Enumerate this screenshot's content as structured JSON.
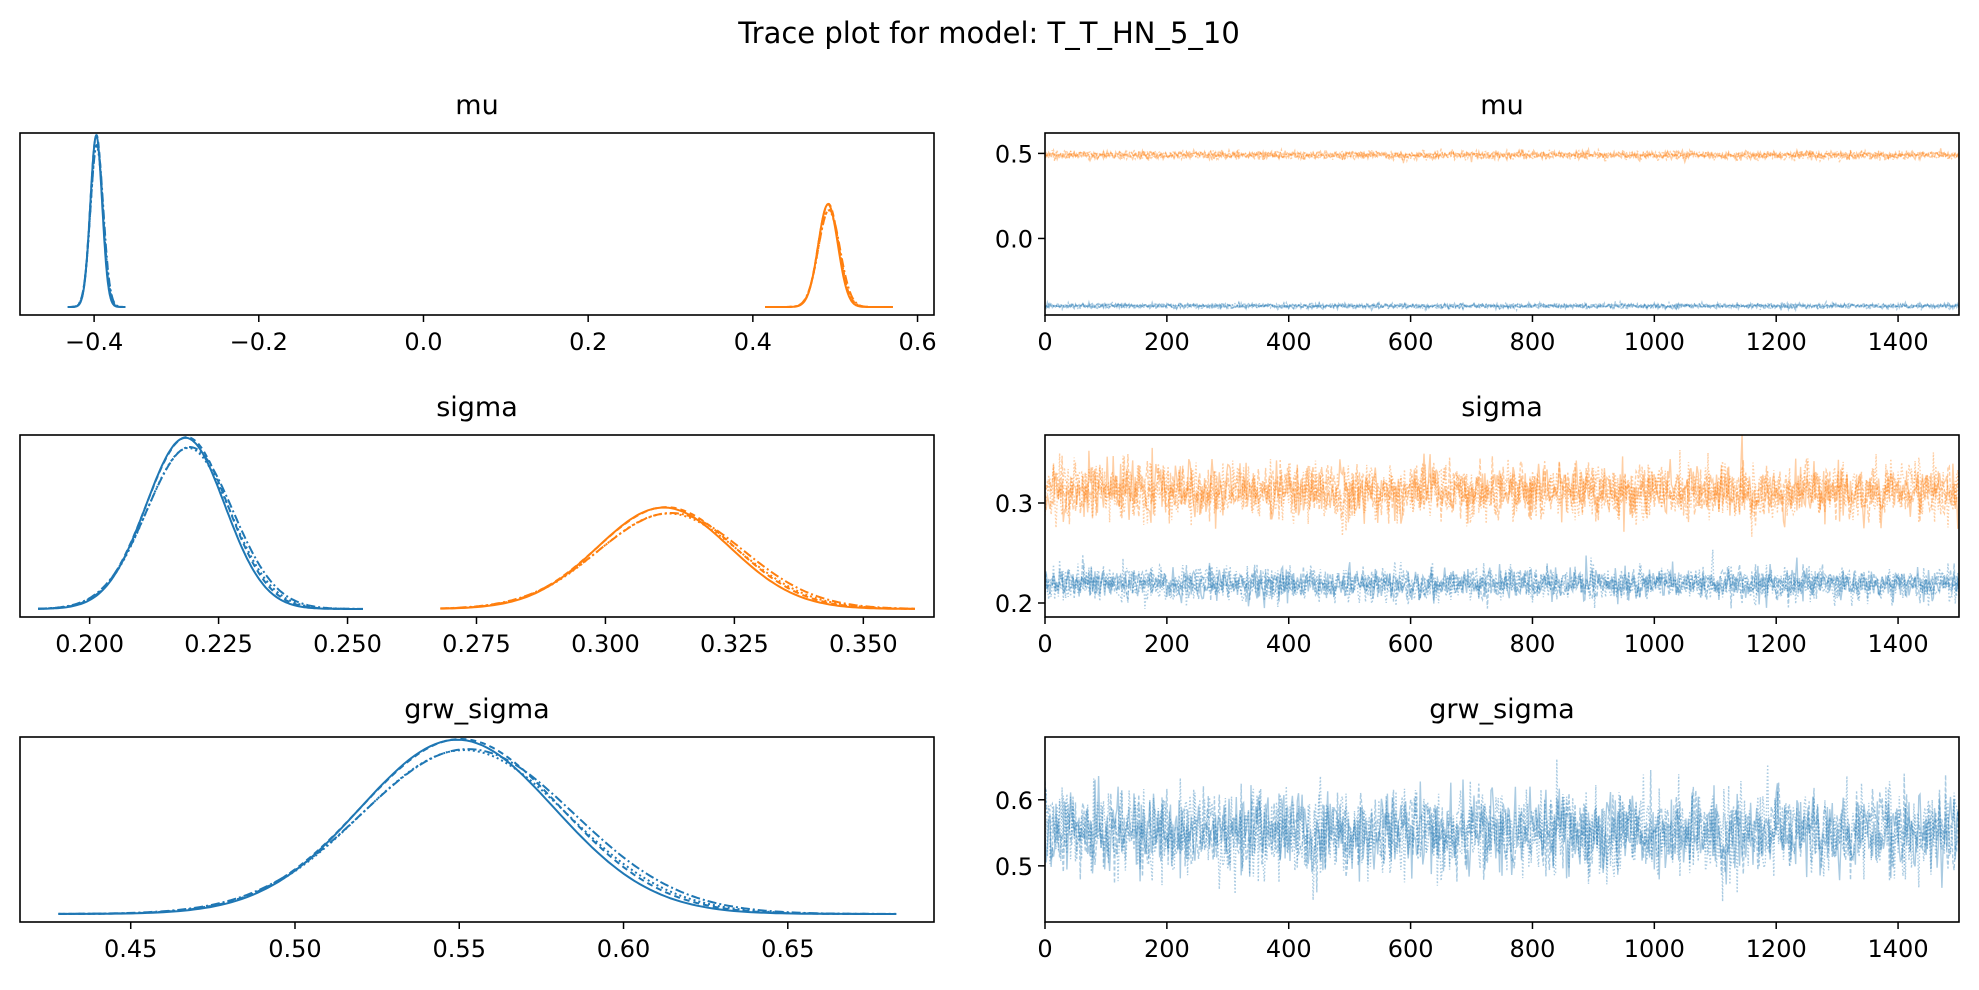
{
  "title": "Trace plot for model: T_T_HN_5_10",
  "colors": {
    "chain_a": "#1f77b4",
    "chain_b": "#ff7f0e"
  },
  "chart_data": [
    {
      "type": "line",
      "kind": "density",
      "title": "mu",
      "xlim": [
        -0.49,
        0.62
      ],
      "xticks": [
        "-0.4",
        "-0.2",
        "0.0",
        "0.2",
        "0.4",
        "0.6"
      ],
      "xtick_values": [
        -0.4,
        -0.2,
        0.0,
        0.2,
        0.4,
        0.6
      ],
      "yticks_visible": false,
      "series": [
        {
          "color": "#1f77b4",
          "mean": -0.397,
          "sd": 0.0075,
          "range": [
            -0.432,
            -0.362
          ]
        },
        {
          "color": "#ff7f0e",
          "mean": 0.492,
          "sd": 0.0125,
          "range": [
            0.415,
            0.57
          ]
        }
      ]
    },
    {
      "type": "line",
      "kind": "trace",
      "title": "mu",
      "xlim": [
        0,
        1500
      ],
      "ylim": [
        -0.45,
        0.62
      ],
      "xticks": [
        "0",
        "200",
        "400",
        "600",
        "800",
        "1000",
        "1200",
        "1400"
      ],
      "xtick_values": [
        0,
        200,
        400,
        600,
        800,
        1000,
        1200,
        1400
      ],
      "yticks": [
        "0.5",
        "0.0"
      ],
      "ytick_values": [
        0.5,
        0.0
      ],
      "draws": 1500,
      "series": [
        {
          "color": "#ff7f0e",
          "mean": 0.49,
          "sd": 0.012
        },
        {
          "color": "#1f77b4",
          "mean": -0.397,
          "sd": 0.0075
        }
      ]
    },
    {
      "type": "line",
      "kind": "density",
      "title": "sigma",
      "xlim": [
        0.1865,
        0.3637
      ],
      "xticks": [
        "0.200",
        "0.225",
        "0.250",
        "0.275",
        "0.300",
        "0.325",
        "0.350"
      ],
      "xtick_values": [
        0.2,
        0.225,
        0.25,
        0.275,
        0.3,
        0.325,
        0.35
      ],
      "yticks_visible": false,
      "series": [
        {
          "color": "#1f77b4",
          "mean": 0.219,
          "sd": 0.008,
          "range": [
            0.19,
            0.253
          ]
        },
        {
          "color": "#ff7f0e",
          "mean": 0.312,
          "sd": 0.0135,
          "range": [
            0.268,
            0.36
          ]
        }
      ]
    },
    {
      "type": "line",
      "kind": "trace",
      "title": "sigma",
      "xlim": [
        0,
        1500
      ],
      "ylim": [
        0.186,
        0.368
      ],
      "xticks": [
        "0",
        "200",
        "400",
        "600",
        "800",
        "1000",
        "1200",
        "1400"
      ],
      "xtick_values": [
        0,
        200,
        400,
        600,
        800,
        1000,
        1200,
        1400
      ],
      "yticks": [
        "0.3",
        "0.2"
      ],
      "ytick_values": [
        0.3,
        0.2
      ],
      "draws": 1500,
      "series": [
        {
          "color": "#ff7f0e",
          "mean": 0.312,
          "sd": 0.0135
        },
        {
          "color": "#1f77b4",
          "mean": 0.219,
          "sd": 0.008
        }
      ]
    },
    {
      "type": "line",
      "kind": "density",
      "title": "grw_sigma",
      "xlim": [
        0.4163,
        0.6945
      ],
      "xticks": [
        "0.45",
        "0.50",
        "0.55",
        "0.60",
        "0.65"
      ],
      "xtick_values": [
        0.45,
        0.5,
        0.55,
        0.6,
        0.65
      ],
      "yticks_visible": false,
      "series": [
        {
          "color": "#1f77b4",
          "mean": 0.551,
          "sd": 0.031,
          "range": [
            0.428,
            0.683
          ]
        }
      ]
    },
    {
      "type": "line",
      "kind": "trace",
      "title": "grw_sigma",
      "xlim": [
        0,
        1500
      ],
      "ylim": [
        0.415,
        0.695
      ],
      "xticks": [
        "0",
        "200",
        "400",
        "600",
        "800",
        "1000",
        "1200",
        "1400"
      ],
      "xtick_values": [
        0,
        200,
        400,
        600,
        800,
        1000,
        1200,
        1400
      ],
      "yticks": [
        "0.6",
        "0.5"
      ],
      "ytick_values": [
        0.6,
        0.5
      ],
      "draws": 1500,
      "series": [
        {
          "color": "#1f77b4",
          "mean": 0.551,
          "sd": 0.031
        }
      ]
    }
  ]
}
